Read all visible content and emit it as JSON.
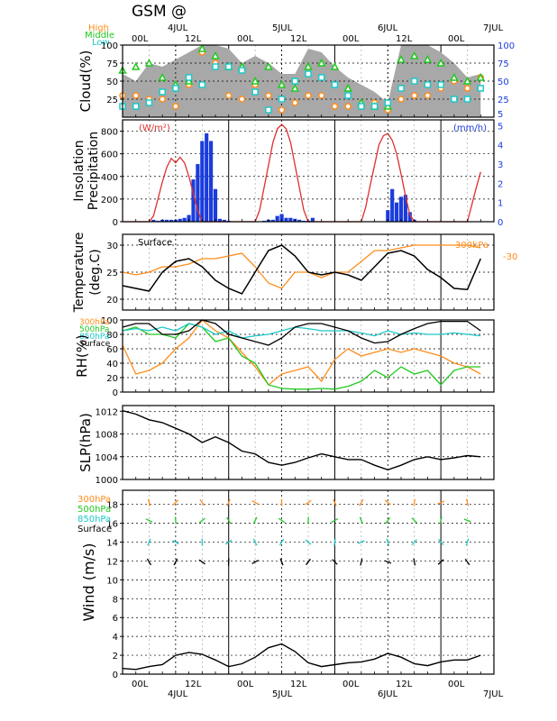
{
  "header": {
    "title": "GSM @",
    "cloud_legend": [
      "High",
      "Middle",
      "Low"
    ],
    "top_dates": [
      "4JUL",
      "5JUL",
      "6JUL",
      "7JUL"
    ],
    "bottom_dates": [
      "4JUL",
      "5JUL",
      "6JUL",
      "7JUL"
    ],
    "time_ticks": [
      "00L",
      "12L",
      "00L",
      "12L",
      "00L",
      "12L",
      "00L"
    ]
  },
  "colors": {
    "high": "#ff8c1a",
    "middle": "#22c922",
    "low": "#1ec8c8",
    "surface": "#000000",
    "insolation": "#e03030",
    "precip": "#1a3cdc",
    "cloud_fill": "#a8a8a8",
    "axis_right": "#1a3cdc"
  },
  "chart_data": [
    {
      "id": "cloud",
      "type": "area",
      "ylabel": "Cloud(%)",
      "ylim": [
        0,
        100
      ],
      "yticks": [
        "100",
        "75",
        "50",
        "25"
      ],
      "right_ticks": [
        "100",
        "75",
        "50",
        "25",
        "5"
      ],
      "x_hours": [
        0,
        3,
        6,
        9,
        12,
        15,
        18,
        21,
        24,
        27,
        30,
        33,
        36,
        39,
        42,
        45,
        48,
        51,
        54,
        57,
        60,
        63,
        66,
        69,
        72,
        75,
        78,
        81
      ],
      "series": [
        {
          "name": "total",
          "values": [
            60,
            50,
            75,
            70,
            80,
            90,
            100,
            100,
            95,
            75,
            85,
            75,
            60,
            60,
            95,
            90,
            70,
            55,
            45,
            35,
            20,
            100,
            100,
            100,
            90,
            75,
            55,
            60
          ]
        },
        {
          "name": "High",
          "values": [
            30,
            30,
            25,
            25,
            15,
            45,
            90,
            75,
            30,
            25,
            45,
            30,
            10,
            20,
            30,
            30,
            15,
            15,
            15,
            20,
            10,
            25,
            30,
            30,
            40,
            50,
            40,
            55
          ]
        },
        {
          "name": "Middle",
          "values": [
            65,
            70,
            75,
            55,
            45,
            50,
            95,
            85,
            70,
            70,
            50,
            70,
            45,
            40,
            70,
            75,
            70,
            40,
            20,
            15,
            15,
            80,
            85,
            80,
            75,
            55,
            50,
            55
          ]
        },
        {
          "name": "Low",
          "values": [
            15,
            15,
            20,
            35,
            40,
            55,
            45,
            70,
            70,
            65,
            35,
            10,
            25,
            50,
            60,
            55,
            45,
            30,
            15,
            15,
            20,
            40,
            50,
            45,
            45,
            25,
            25,
            40
          ]
        }
      ]
    },
    {
      "id": "insolation",
      "type": "line",
      "ylabel": [
        "Insolation",
        "Precipitation"
      ],
      "unit_left": "(W/m²)",
      "unit_right": "(mm/h)",
      "ylim": [
        0,
        900
      ],
      "yticks": [
        "800",
        "600",
        "400",
        "200",
        "0"
      ],
      "right_ticks": [
        "5",
        "4",
        "3",
        "2",
        "1",
        "0"
      ],
      "x_hours": [
        0,
        1,
        2,
        3,
        4,
        5,
        6,
        7,
        8,
        9,
        10,
        11,
        12,
        13,
        14,
        15,
        16,
        17,
        18,
        19,
        20,
        21,
        22,
        23,
        24,
        25,
        26,
        27,
        28,
        29,
        30,
        31,
        32,
        33,
        34,
        35,
        36,
        37,
        38,
        39,
        40,
        41,
        42,
        43,
        44,
        45,
        46,
        47,
        48,
        49,
        50,
        51,
        52,
        53,
        54,
        55,
        56,
        57,
        58,
        59,
        60,
        61,
        62,
        63,
        64,
        65,
        66,
        67,
        68,
        69,
        70,
        71,
        72,
        73,
        74,
        75,
        76,
        77,
        78,
        79,
        80,
        81
      ],
      "insolation": [
        0,
        0,
        0,
        0,
        0,
        0,
        0,
        50,
        200,
        350,
        480,
        560,
        520,
        570,
        520,
        400,
        250,
        100,
        0,
        0,
        0,
        0,
        0,
        0,
        0,
        0,
        0,
        0,
        0,
        0,
        0,
        100,
        300,
        500,
        700,
        820,
        860,
        820,
        700,
        500,
        300,
        100,
        0,
        0,
        0,
        0,
        0,
        0,
        0,
        0,
        0,
        0,
        0,
        0,
        0,
        130,
        320,
        500,
        680,
        760,
        780,
        720,
        600,
        420,
        230,
        60,
        0,
        0,
        0,
        0,
        0,
        0,
        0,
        0,
        0,
        0,
        0,
        0,
        0,
        150,
        300,
        440
      ],
      "precip_hours": [
        7,
        8,
        9,
        10,
        11,
        12,
        13,
        14,
        15,
        16,
        17,
        18,
        19,
        20,
        21,
        22,
        23,
        24,
        25,
        26,
        27,
        28,
        29,
        30,
        31,
        32,
        33,
        34,
        35,
        36,
        37,
        38,
        39,
        40,
        41,
        42,
        43,
        44,
        45,
        46,
        47,
        48,
        49,
        50,
        51,
        52,
        53,
        54,
        55,
        56,
        57,
        58,
        59,
        60,
        61,
        62,
        63,
        64,
        65,
        66,
        67,
        68,
        69,
        70,
        71,
        72,
        73,
        74,
        75,
        76,
        77,
        78,
        79,
        80,
        81
      ],
      "precip": [
        0.1,
        0.05,
        0.1,
        0.1,
        0.1,
        0.1,
        0.15,
        0.2,
        0.35,
        2.2,
        3.0,
        4.2,
        4.6,
        4.2,
        1.7,
        0.15,
        0.1,
        0.05,
        0,
        0,
        0,
        0,
        0,
        0,
        0,
        0.05,
        0.1,
        0.1,
        0.3,
        0.4,
        0.2,
        0.2,
        0.15,
        0.1,
        0.05,
        0.05,
        0.2,
        0,
        0,
        0,
        0,
        0,
        0,
        0,
        0,
        0,
        0,
        0,
        0,
        0,
        0,
        0,
        0,
        0.6,
        1.7,
        1.0,
        1.3,
        1.4,
        0.5,
        0.1,
        0,
        0,
        0,
        0,
        0,
        0,
        0,
        0,
        0,
        0,
        0,
        0,
        0,
        0,
        0
      ]
    },
    {
      "id": "temperature",
      "type": "line",
      "ylabel": [
        "Temperature",
        "(deg.C)"
      ],
      "ylim": [
        18,
        32
      ],
      "yticks": [
        "30",
        "25",
        "20"
      ],
      "labels": {
        "surface": "Surface",
        "upper": "300hPa",
        "right_tick": "-30"
      },
      "x_hours": [
        0,
        3,
        6,
        9,
        12,
        15,
        18,
        21,
        24,
        27,
        30,
        33,
        36,
        39,
        42,
        45,
        48,
        51,
        54,
        57,
        60,
        63,
        66,
        69,
        72,
        75,
        78,
        81
      ],
      "series": [
        {
          "name": "Surface",
          "values": [
            22.5,
            22,
            21.5,
            25,
            27,
            27.5,
            26,
            23.5,
            22,
            21,
            25,
            29,
            30,
            28,
            25,
            24.5,
            25,
            24.5,
            23.5,
            26,
            28.5,
            29,
            28,
            25.5,
            24,
            22,
            21.8,
            27.5
          ]
        },
        {
          "name": "300hPa",
          "values": [
            -33,
            -33.5,
            -33,
            -32,
            -32,
            -31.5,
            -30.5,
            -30.5,
            -30,
            -29.5,
            -32,
            -35,
            -36,
            -33,
            -33,
            -34,
            -33,
            -33,
            -31,
            -29,
            -29,
            -28.5,
            -28,
            -28,
            -28,
            -28,
            -28,
            -28.5
          ]
        }
      ]
    },
    {
      "id": "rh",
      "type": "line",
      "ylabel": "RH(%)",
      "ylim": [
        0,
        100
      ],
      "yticks": [
        "100",
        "80",
        "60",
        "40",
        "20",
        "0"
      ],
      "legend": [
        "300hPa",
        "500hPa",
        "850hPa",
        "Surface"
      ],
      "x_hours": [
        0,
        3,
        6,
        9,
        12,
        15,
        18,
        21,
        24,
        27,
        30,
        33,
        36,
        39,
        42,
        45,
        48,
        51,
        54,
        57,
        60,
        63,
        66,
        69,
        72,
        75,
        78,
        81
      ],
      "series": [
        {
          "name": "300hPa",
          "values": [
            65,
            25,
            30,
            40,
            60,
            75,
            100,
            85,
            75,
            55,
            35,
            10,
            25,
            30,
            35,
            15,
            45,
            60,
            50,
            55,
            60,
            55,
            60,
            55,
            50,
            40,
            35,
            25
          ]
        },
        {
          "name": "500hPa",
          "values": [
            85,
            90,
            80,
            80,
            75,
            95,
            90,
            70,
            75,
            50,
            40,
            10,
            5,
            4,
            4,
            5,
            4,
            8,
            15,
            30,
            20,
            35,
            25,
            30,
            10,
            30,
            35,
            35
          ]
        },
        {
          "name": "850hPa",
          "values": [
            85,
            88,
            85,
            90,
            85,
            95,
            90,
            80,
            85,
            75,
            78,
            80,
            85,
            90,
            88,
            85,
            85,
            85,
            82,
            78,
            85,
            80,
            82,
            80,
            80,
            82,
            80,
            78
          ]
        },
        {
          "name": "Surface",
          "values": [
            90,
            95,
            95,
            80,
            80,
            85,
            100,
            95,
            80,
            75,
            70,
            65,
            75,
            90,
            95,
            95,
            90,
            85,
            75,
            68,
            70,
            80,
            88,
            95,
            98,
            98,
            98,
            85
          ]
        }
      ]
    },
    {
      "id": "slp",
      "type": "line",
      "ylabel": "SLP(hPa)",
      "ylim": [
        1000,
        1013
      ],
      "yticks": [
        "1012",
        "1008",
        "1004",
        "1000"
      ],
      "x_hours": [
        0,
        3,
        6,
        9,
        12,
        15,
        18,
        21,
        24,
        27,
        30,
        33,
        36,
        39,
        42,
        45,
        48,
        51,
        54,
        57,
        60,
        63,
        66,
        69,
        72,
        75,
        78,
        81
      ],
      "series": [
        {
          "name": "Surface",
          "values": [
            1012.1,
            1011.5,
            1010.5,
            1010,
            1009,
            1008,
            1006.5,
            1007.5,
            1006.5,
            1005,
            1004.5,
            1003,
            1002.5,
            1003,
            1003.8,
            1004.5,
            1004,
            1003.5,
            1003.5,
            1002.5,
            1001.7,
            1002.5,
            1003.5,
            1004,
            1003.5,
            1003.8,
            1004.2,
            1004
          ]
        }
      ]
    },
    {
      "id": "wind",
      "type": "line",
      "ylabel": "Wind  (m/s)",
      "ylim": [
        0,
        19.5
      ],
      "yticks": [
        "18",
        "16",
        "14",
        "12",
        "10",
        "8",
        "6",
        "4",
        "2",
        "0"
      ],
      "legend": [
        "300hPa",
        "500hPa",
        "850hPa",
        "Surface"
      ],
      "x_hours": [
        0,
        3,
        6,
        9,
        12,
        15,
        18,
        21,
        24,
        27,
        30,
        33,
        36,
        39,
        42,
        45,
        48,
        51,
        54,
        57,
        60,
        63,
        66,
        69,
        72,
        75,
        78,
        81
      ],
      "series": [
        {
          "name": "Surface",
          "values": [
            0.6,
            0.5,
            0.8,
            1.0,
            2.0,
            2.3,
            2.1,
            1.5,
            0.8,
            1.1,
            1.8,
            2.8,
            3.2,
            2.4,
            1.2,
            0.8,
            1.0,
            1.2,
            1.3,
            1.6,
            2.2,
            1.8,
            1.1,
            0.9,
            1.3,
            1.5,
            1.5,
            2.0
          ]
        }
      ]
    }
  ]
}
